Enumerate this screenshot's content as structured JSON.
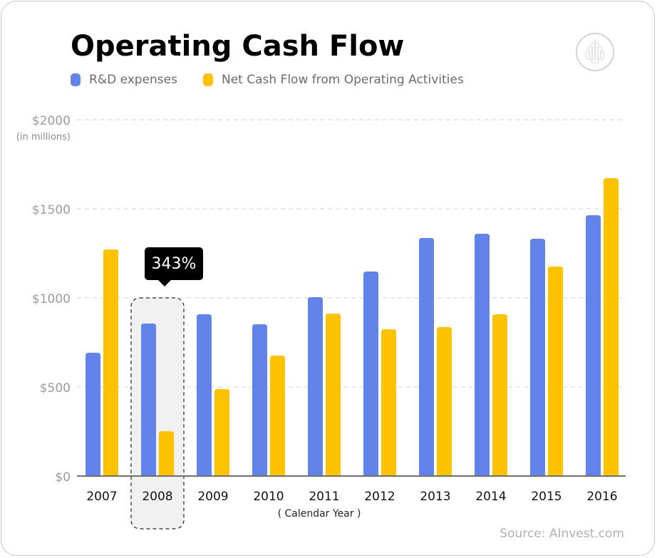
{
  "title": "Operating Cash Flow",
  "legend": [
    {
      "label": "R&D expenses",
      "color": "#6283EA"
    },
    {
      "label": "Net Cash Flow from Operating Activities",
      "color": "#FFC200"
    }
  ],
  "logo_icon": "spade-logo-icon",
  "source": "Source: AInvest.com",
  "tooltip": {
    "label": "343%",
    "category": "2008"
  },
  "chart_data": {
    "type": "bar",
    "title": "Operating Cash Flow",
    "xlabel": "( Calendar Year )",
    "ylabel": "(in millions)",
    "ylim": [
      0,
      2000
    ],
    "yticks": [
      0,
      500,
      1000,
      1500,
      2000
    ],
    "ytick_labels": [
      "$0",
      "$500",
      "$1000",
      "$1500",
      "$2000"
    ],
    "grid": true,
    "legend_position": "top-left",
    "categories": [
      "2007",
      "2008",
      "2009",
      "2010",
      "2011",
      "2012",
      "2013",
      "2014",
      "2015",
      "2016"
    ],
    "series": [
      {
        "name": "R&D expenses",
        "color": "#6283EA",
        "values": [
          692,
          856,
          908,
          852,
          1004,
          1148,
          1336,
          1360,
          1332,
          1464
        ]
      },
      {
        "name": "Net Cash Flow from Operating Activities",
        "color": "#FFC200",
        "values": [
          1272,
          252,
          488,
          676,
          912,
          824,
          836,
          908,
          1176,
          1672
        ]
      }
    ],
    "highlight": {
      "category": "2008",
      "annotation": "343%"
    }
  }
}
